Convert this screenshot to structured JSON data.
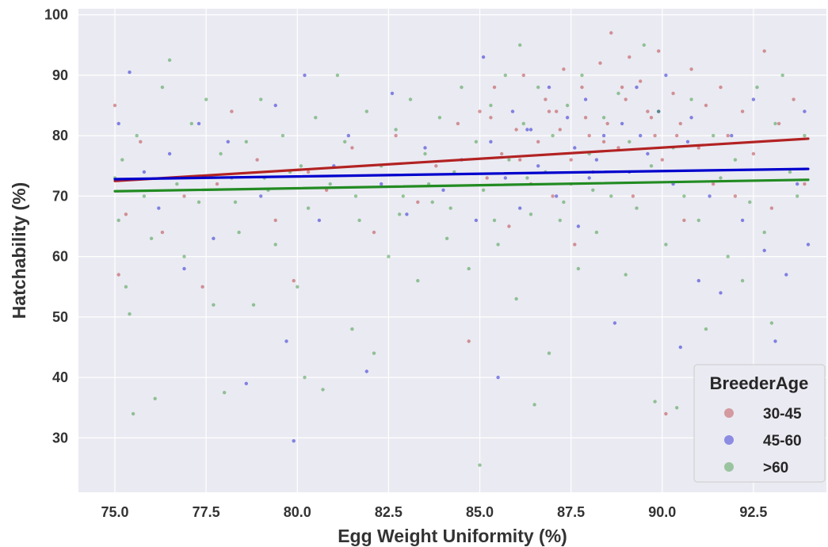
{
  "chart_data": {
    "type": "scatter",
    "title": "",
    "xlabel": "Egg Weight Uniformity (%)",
    "ylabel": "Hatchability (%)",
    "xlim": [
      74.0,
      94.5
    ],
    "ylim": [
      21.0,
      101.0
    ],
    "xticks": [
      "75.0",
      "77.5",
      "80.0",
      "82.5",
      "85.0",
      "87.5",
      "90.0",
      "92.5"
    ],
    "yticks": [
      "30",
      "40",
      "50",
      "60",
      "70",
      "80",
      "90",
      "100"
    ],
    "grid": true,
    "legend": {
      "title": "BreederAge",
      "placement": "bottom-right",
      "entries": [
        "30-45",
        "45-60",
        ">60"
      ]
    },
    "series": [
      {
        "name": "30-45",
        "color": "#b22222",
        "trend": {
          "x": [
            75.0,
            94.0
          ],
          "y": [
            72.5,
            79.5
          ]
        },
        "points": [
          [
            75.0,
            85
          ],
          [
            75.1,
            57
          ],
          [
            75.3,
            67
          ],
          [
            75.7,
            79
          ],
          [
            76.3,
            64
          ],
          [
            76.9,
            70
          ],
          [
            77.4,
            55
          ],
          [
            77.8,
            72
          ],
          [
            78.2,
            84
          ],
          [
            78.9,
            76
          ],
          [
            79.4,
            66
          ],
          [
            79.9,
            56
          ],
          [
            80.3,
            74
          ],
          [
            80.8,
            71
          ],
          [
            81.5,
            78
          ],
          [
            82.1,
            64
          ],
          [
            82.7,
            80
          ],
          [
            83.3,
            69
          ],
          [
            83.8,
            75
          ],
          [
            84.4,
            82
          ],
          [
            84.7,
            46
          ],
          [
            85.0,
            84
          ],
          [
            85.2,
            73
          ],
          [
            85.4,
            88
          ],
          [
            85.6,
            77
          ],
          [
            85.8,
            65
          ],
          [
            86.0,
            81
          ],
          [
            86.2,
            90
          ],
          [
            86.4,
            72
          ],
          [
            86.6,
            79
          ],
          [
            86.8,
            86
          ],
          [
            87.0,
            70
          ],
          [
            87.1,
            84
          ],
          [
            87.3,
            91
          ],
          [
            87.5,
            76
          ],
          [
            87.6,
            62
          ],
          [
            87.8,
            88
          ],
          [
            88.0,
            80
          ],
          [
            88.1,
            74
          ],
          [
            88.3,
            92
          ],
          [
            88.5,
            82
          ],
          [
            88.6,
            97
          ],
          [
            88.8,
            78
          ],
          [
            89.0,
            86
          ],
          [
            89.2,
            70
          ],
          [
            89.4,
            89
          ],
          [
            89.6,
            84
          ],
          [
            89.8,
            80
          ],
          [
            89.9,
            94
          ],
          [
            90.0,
            76
          ],
          [
            90.1,
            34
          ],
          [
            90.3,
            87
          ],
          [
            90.5,
            82
          ],
          [
            90.6,
            66
          ],
          [
            90.8,
            91
          ],
          [
            91.0,
            78
          ],
          [
            91.2,
            85
          ],
          [
            91.4,
            72
          ],
          [
            91.6,
            88
          ],
          [
            91.8,
            80
          ],
          [
            92.0,
            70
          ],
          [
            92.2,
            84
          ],
          [
            92.5,
            77
          ],
          [
            92.8,
            94
          ],
          [
            93.0,
            68
          ],
          [
            93.2,
            82
          ],
          [
            93.6,
            86
          ],
          [
            93.9,
            72
          ],
          [
            86.9,
            84
          ],
          [
            87.9,
            83
          ],
          [
            88.9,
            88
          ],
          [
            89.7,
            83
          ],
          [
            88.4,
            79
          ],
          [
            87.2,
            81
          ],
          [
            86.1,
            76
          ],
          [
            85.3,
            83
          ],
          [
            90.4,
            80
          ],
          [
            89.1,
            93
          ]
        ]
      },
      {
        "name": "45-60",
        "color": "#0000cd",
        "trend": {
          "x": [
            75.0,
            94.0
          ],
          "y": [
            72.8,
            74.5
          ]
        },
        "points": [
          [
            75.1,
            82
          ],
          [
            75.4,
            90.5
          ],
          [
            75.8,
            74
          ],
          [
            76.2,
            68
          ],
          [
            76.5,
            77
          ],
          [
            76.9,
            58
          ],
          [
            77.3,
            82
          ],
          [
            77.7,
            63
          ],
          [
            78.1,
            79
          ],
          [
            78.6,
            39
          ],
          [
            79.0,
            70
          ],
          [
            79.4,
            85
          ],
          [
            79.7,
            46
          ],
          [
            79.9,
            29.5
          ],
          [
            80.2,
            90
          ],
          [
            80.6,
            66
          ],
          [
            81.0,
            75
          ],
          [
            81.4,
            80
          ],
          [
            81.9,
            41
          ],
          [
            82.3,
            72
          ],
          [
            82.6,
            87
          ],
          [
            83.0,
            67
          ],
          [
            83.5,
            78
          ],
          [
            84.0,
            71
          ],
          [
            84.5,
            76
          ],
          [
            84.9,
            66
          ],
          [
            85.1,
            93
          ],
          [
            85.3,
            79
          ],
          [
            85.5,
            40
          ],
          [
            85.7,
            73
          ],
          [
            85.9,
            84
          ],
          [
            86.1,
            68
          ],
          [
            86.3,
            81
          ],
          [
            86.6,
            75
          ],
          [
            86.9,
            88
          ],
          [
            87.1,
            70
          ],
          [
            87.4,
            83
          ],
          [
            87.7,
            65
          ],
          [
            87.9,
            86
          ],
          [
            88.2,
            76
          ],
          [
            88.4,
            80
          ],
          [
            88.7,
            49
          ],
          [
            88.9,
            82
          ],
          [
            89.1,
            74
          ],
          [
            89.3,
            88
          ],
          [
            89.6,
            77
          ],
          [
            89.9,
            84
          ],
          [
            90.1,
            90
          ],
          [
            90.3,
            72
          ],
          [
            90.5,
            45
          ],
          [
            90.8,
            83
          ],
          [
            91.0,
            56
          ],
          [
            91.3,
            70
          ],
          [
            91.6,
            54
          ],
          [
            91.9,
            80
          ],
          [
            92.2,
            66
          ],
          [
            92.5,
            86
          ],
          [
            92.8,
            61
          ],
          [
            93.1,
            46
          ],
          [
            93.4,
            57
          ],
          [
            93.7,
            72
          ],
          [
            94.0,
            62
          ],
          [
            93.9,
            84
          ],
          [
            87.6,
            78
          ],
          [
            86.4,
            81
          ],
          [
            89.4,
            80
          ],
          [
            88.0,
            73
          ],
          [
            90.7,
            79
          ]
        ]
      },
      {
        "name": ">60",
        "color": "#228b22",
        "trend": {
          "x": [
            75.0,
            94.0
          ],
          "y": [
            70.8,
            72.7
          ]
        },
        "points": [
          [
            75.0,
            73
          ],
          [
            75.1,
            66
          ],
          [
            75.2,
            76
          ],
          [
            75.3,
            55
          ],
          [
            75.4,
            50.5
          ],
          [
            75.5,
            34
          ],
          [
            75.6,
            80
          ],
          [
            75.8,
            70
          ],
          [
            76.0,
            63
          ],
          [
            76.1,
            36.5
          ],
          [
            76.3,
            88
          ],
          [
            76.5,
            92.5
          ],
          [
            76.7,
            72
          ],
          [
            76.9,
            60
          ],
          [
            77.1,
            82
          ],
          [
            77.3,
            69
          ],
          [
            77.5,
            86
          ],
          [
            77.7,
            52
          ],
          [
            77.9,
            77
          ],
          [
            78.0,
            37.5
          ],
          [
            78.2,
            73
          ],
          [
            78.4,
            64
          ],
          [
            78.6,
            79
          ],
          [
            78.8,
            52
          ],
          [
            79.0,
            86
          ],
          [
            79.2,
            71
          ],
          [
            79.4,
            62
          ],
          [
            79.6,
            80
          ],
          [
            79.8,
            74
          ],
          [
            80.0,
            55
          ],
          [
            80.2,
            40
          ],
          [
            80.3,
            68
          ],
          [
            80.5,
            83
          ],
          [
            80.7,
            38
          ],
          [
            80.9,
            72
          ],
          [
            81.1,
            90
          ],
          [
            81.3,
            79
          ],
          [
            81.5,
            48
          ],
          [
            81.7,
            66
          ],
          [
            81.9,
            84
          ],
          [
            82.1,
            44
          ],
          [
            82.3,
            75
          ],
          [
            82.5,
            60
          ],
          [
            82.7,
            81
          ],
          [
            82.9,
            70
          ],
          [
            83.1,
            86
          ],
          [
            83.3,
            56
          ],
          [
            83.5,
            77
          ],
          [
            83.7,
            69
          ],
          [
            83.9,
            83
          ],
          [
            84.1,
            63
          ],
          [
            84.3,
            74
          ],
          [
            84.5,
            88
          ],
          [
            84.7,
            58
          ],
          [
            84.9,
            79
          ],
          [
            85.0,
            25.5
          ],
          [
            85.1,
            71
          ],
          [
            85.3,
            85
          ],
          [
            85.5,
            62
          ],
          [
            85.7,
            90
          ],
          [
            85.8,
            76
          ],
          [
            86.0,
            53
          ],
          [
            86.1,
            95
          ],
          [
            86.2,
            82
          ],
          [
            86.4,
            67
          ],
          [
            86.5,
            35.5
          ],
          [
            86.6,
            88
          ],
          [
            86.8,
            74
          ],
          [
            86.9,
            44
          ],
          [
            87.0,
            80
          ],
          [
            87.2,
            66
          ],
          [
            87.4,
            85
          ],
          [
            87.5,
            72
          ],
          [
            87.7,
            58
          ],
          [
            87.8,
            90
          ],
          [
            88.0,
            77
          ],
          [
            88.2,
            64
          ],
          [
            88.4,
            83
          ],
          [
            88.6,
            70
          ],
          [
            88.8,
            87
          ],
          [
            89.0,
            57
          ],
          [
            89.1,
            79
          ],
          [
            89.3,
            68
          ],
          [
            89.5,
            95
          ],
          [
            89.7,
            75
          ],
          [
            89.8,
            36
          ],
          [
            89.9,
            84
          ],
          [
            90.1,
            62
          ],
          [
            90.3,
            78
          ],
          [
            90.4,
            35
          ],
          [
            90.6,
            70
          ],
          [
            90.8,
            86
          ],
          [
            91.0,
            66
          ],
          [
            91.2,
            48
          ],
          [
            91.4,
            80
          ],
          [
            91.6,
            73
          ],
          [
            91.8,
            60
          ],
          [
            92.0,
            76
          ],
          [
            92.2,
            56
          ],
          [
            92.4,
            69
          ],
          [
            92.6,
            88
          ],
          [
            92.8,
            64
          ],
          [
            93.0,
            49
          ],
          [
            93.1,
            82
          ],
          [
            93.3,
            90
          ],
          [
            93.5,
            74
          ],
          [
            93.7,
            70
          ],
          [
            93.9,
            80
          ],
          [
            84.2,
            68
          ],
          [
            83.6,
            72
          ],
          [
            86.3,
            73
          ],
          [
            87.3,
            69
          ],
          [
            88.1,
            71
          ],
          [
            85.4,
            66
          ],
          [
            82.8,
            67
          ],
          [
            81.6,
            70
          ],
          [
            80.1,
            75
          ],
          [
            79.1,
            73
          ],
          [
            78.3,
            69
          ]
        ]
      }
    ]
  }
}
